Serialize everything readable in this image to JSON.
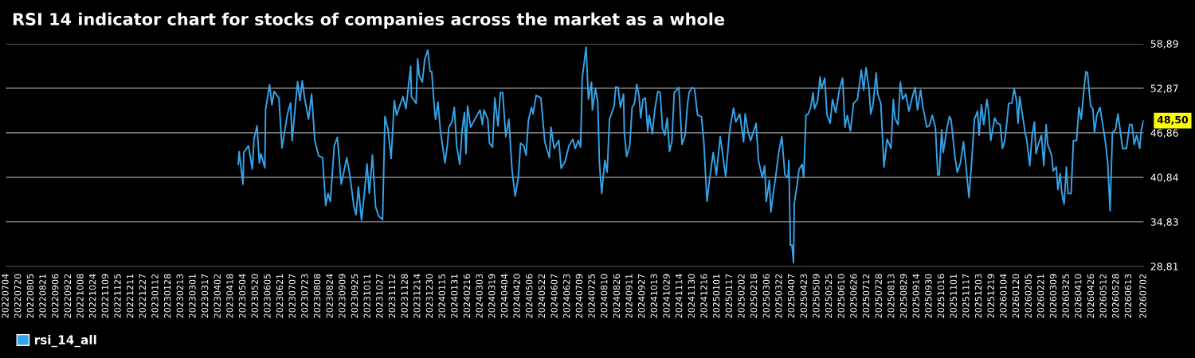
{
  "chart_data": {
    "type": "line",
    "title": "RSI 14 indicator chart for stocks of companies across the market as a whole",
    "x": [
      "2023-04-28",
      "2023-04-29",
      "2023-05-04",
      "2023-05-05",
      "2023-05-11",
      "2023-05-16",
      "2023-05-18",
      "2023-05-22",
      "2023-05-25",
      "2023-05-27",
      "2023-06-01",
      "2023-06-02",
      "2023-06-07",
      "2023-06-10",
      "2023-06-13",
      "2023-06-19",
      "2023-06-23",
      "2023-06-30",
      "2023-07-04",
      "2023-07-06",
      "2023-07-13",
      "2023-07-16",
      "2023-07-19",
      "2023-07-22",
      "2023-07-27",
      "2023-07-31",
      "2023-08-04",
      "2023-08-09",
      "2023-08-14",
      "2023-08-18",
      "2023-08-21",
      "2023-08-24",
      "2023-08-29",
      "2023-09-02",
      "2023-09-07",
      "2023-09-14",
      "2023-09-18",
      "2023-09-23",
      "2023-09-26",
      "2023-09-29",
      "2023-10-03",
      "2023-10-07",
      "2023-10-10",
      "2023-10-13",
      "2023-10-17",
      "2023-10-21",
      "2023-10-25",
      "2023-10-30",
      "2023-11-02",
      "2023-11-06",
      "2023-11-10",
      "2023-11-14",
      "2023-11-17",
      "2023-11-25",
      "2023-11-29",
      "2023-12-05",
      "2023-12-06",
      "2023-12-12",
      "2023-12-14",
      "2023-12-16",
      "2023-12-20",
      "2023-12-23",
      "2023-12-27",
      "2023-12-30",
      "2024-01-01",
      "2024-01-05",
      "2024-01-06",
      "2024-01-09",
      "2024-01-12",
      "2024-01-18",
      "2024-01-21",
      "2024-01-23",
      "2024-01-27",
      "2024-01-30",
      "2024-02-02",
      "2024-02-06",
      "2024-02-09",
      "2024-02-12",
      "2024-02-14",
      "2024-02-16",
      "2024-02-20",
      "2024-02-28",
      "2024-03-03",
      "2024-03-06",
      "2024-03-08",
      "2024-03-13",
      "2024-03-15",
      "2024-03-19",
      "2024-03-22",
      "2024-03-26",
      "2024-03-29",
      "2024-04-01",
      "2024-04-05",
      "2024-04-09",
      "2024-04-13",
      "2024-04-17",
      "2024-04-21",
      "2024-04-24",
      "2024-04-28",
      "2024-05-01",
      "2024-05-04",
      "2024-05-08",
      "2024-05-10",
      "2024-05-14",
      "2024-05-20",
      "2024-05-25",
      "2024-05-31",
      "2024-06-02",
      "2024-06-06",
      "2024-06-12",
      "2024-06-15",
      "2024-06-20",
      "2024-06-25",
      "2024-06-30",
      "2024-07-03",
      "2024-07-07",
      "2024-07-10",
      "2024-07-12",
      "2024-07-17",
      "2024-07-20",
      "2024-07-24",
      "2024-07-25",
      "2024-07-29",
      "2024-08-01",
      "2024-08-03",
      "2024-08-06",
      "2024-08-10",
      "2024-08-13",
      "2024-08-16",
      "2024-08-22",
      "2024-08-24",
      "2024-08-27",
      "2024-08-30",
      "2024-09-03",
      "2024-09-04",
      "2024-09-07",
      "2024-09-11",
      "2024-09-14",
      "2024-09-17",
      "2024-09-20",
      "2024-09-23",
      "2024-09-25",
      "2024-09-28",
      "2024-10-01",
      "2024-10-04",
      "2024-10-06",
      "2024-10-10",
      "2024-10-13",
      "2024-10-17",
      "2024-10-20",
      "2024-10-23",
      "2024-10-26",
      "2024-10-29",
      "2024-11-01",
      "2024-11-04",
      "2024-11-07",
      "2024-11-10",
      "2024-11-13",
      "2024-11-17",
      "2024-11-21",
      "2024-11-24",
      "2024-11-26",
      "2024-11-30",
      "2024-12-03",
      "2024-12-07",
      "2024-12-12",
      "2024-12-15",
      "2024-12-19",
      "2024-12-22",
      "2024-12-27",
      "2024-12-31",
      "2025-01-05",
      "2025-01-08",
      "2025-01-12",
      "2025-01-17",
      "2025-01-22",
      "2025-01-25",
      "2025-01-30",
      "2025-02-04",
      "2025-02-06",
      "2025-02-10",
      "2025-02-13",
      "2025-02-20",
      "2025-02-23",
      "2025-02-28",
      "2025-03-03",
      "2025-03-05",
      "2025-03-09",
      "2025-03-11",
      "2025-03-14",
      "2025-03-17",
      "2025-03-21",
      "2025-03-25",
      "2025-03-29",
      "2025-04-02",
      "2025-04-03",
      "2025-04-05",
      "2025-04-07",
      "2025-04-09",
      "2025-04-10",
      "2025-04-13",
      "2025-04-16",
      "2025-04-20",
      "2025-04-22",
      "2025-04-25",
      "2025-04-28",
      "2025-05-01",
      "2025-05-04",
      "2025-05-06",
      "2025-05-10",
      "2025-05-13",
      "2025-05-15",
      "2025-05-19",
      "2025-05-22",
      "2025-05-26",
      "2025-05-29",
      "2025-06-02",
      "2025-06-07",
      "2025-06-11",
      "2025-06-14",
      "2025-06-17",
      "2025-06-21",
      "2025-06-25",
      "2025-06-30",
      "2025-07-05",
      "2025-07-08",
      "2025-07-11",
      "2025-07-15",
      "2025-07-17",
      "2025-07-20",
      "2025-07-24",
      "2025-07-26",
      "2025-07-30",
      "2025-08-03",
      "2025-08-07",
      "2025-08-10",
      "2025-08-12",
      "2025-08-15",
      "2025-08-17",
      "2025-08-21",
      "2025-08-24",
      "2025-08-27",
      "2025-08-31",
      "2025-09-04",
      "2025-09-08",
      "2025-09-12",
      "2025-09-15",
      "2025-09-19",
      "2025-09-22",
      "2025-09-27",
      "2025-09-30",
      "2025-10-04",
      "2025-10-08",
      "2025-10-11",
      "2025-10-13",
      "2025-10-16",
      "2025-10-18",
      "2025-10-23",
      "2025-10-26",
      "2025-10-28",
      "2025-11-02",
      "2025-11-05",
      "2025-11-09",
      "2025-11-13",
      "2025-11-16",
      "2025-11-20",
      "2025-11-23",
      "2025-11-27",
      "2025-12-01",
      "2025-12-03",
      "2025-12-06",
      "2025-12-09",
      "2025-12-13",
      "2025-12-15",
      "2025-12-18",
      "2025-12-23",
      "2025-12-26",
      "2025-12-30",
      "2026-01-02",
      "2026-01-05",
      "2026-01-08",
      "2026-01-10",
      "2026-01-14",
      "2026-01-17",
      "2026-01-20",
      "2026-01-22",
      "2026-01-24",
      "2026-01-28",
      "2026-01-31",
      "2026-02-02",
      "2026-02-06",
      "2026-02-09",
      "2026-02-12",
      "2026-02-14",
      "2026-02-17",
      "2026-02-21",
      "2026-02-24",
      "2026-02-27",
      "2026-03-01",
      "2026-03-06",
      "2026-03-08",
      "2026-03-12",
      "2026-03-14",
      "2026-03-17",
      "2026-03-19",
      "2026-03-22",
      "2026-03-25",
      "2026-03-27",
      "2026-03-31",
      "2026-04-03",
      "2026-04-07",
      "2026-04-10",
      "2026-04-13",
      "2026-04-16",
      "2026-04-19",
      "2026-04-21",
      "2026-04-25",
      "2026-04-28",
      "2026-04-30",
      "2026-05-03",
      "2026-05-07",
      "2026-05-10",
      "2026-05-14",
      "2026-05-17",
      "2026-05-20",
      "2026-05-23",
      "2026-05-27",
      "2026-05-30",
      "2026-06-01",
      "2026-06-05",
      "2026-06-10",
      "2026-06-14",
      "2026-06-17",
      "2026-06-20",
      "2026-06-23",
      "2026-06-27",
      "2026-06-29",
      "2026-07-02"
    ],
    "series": [
      {
        "name": "rsi_14_all",
        "color": "#35a3e8",
        "values": [
          42.59,
          44.31,
          39.9,
          44.2,
          45.1,
          41.94,
          45.99,
          47.79,
          42.77,
          44.02,
          42.12,
          50.04,
          53.34,
          50.65,
          52.44,
          51.55,
          44.81,
          49.4,
          50.9,
          45.81,
          53.77,
          51.19,
          53.88,
          51.55,
          48.68,
          52.08,
          45.81,
          43.74,
          43.49,
          37.04,
          38.65,
          37.57,
          45.1,
          46.24,
          39.9,
          43.49,
          41.16,
          37.04,
          35.78,
          39.54,
          35.06,
          39.01,
          42.66,
          38.65,
          43.84,
          36.86,
          35.6,
          35.14,
          49.04,
          47.25,
          43.38,
          51.19,
          49.22,
          51.73,
          50.11,
          55.85,
          51.73,
          50.83,
          56.85,
          54.59,
          53.7,
          56.74,
          58.0,
          55.13,
          55.13,
          49.4,
          48.68,
          51.01,
          47.25,
          42.77,
          45.1,
          47.61,
          48.32,
          50.29,
          45.1,
          42.59,
          47.25,
          49.58,
          44.02,
          50.47,
          47.61,
          49.22,
          49.93,
          47.96,
          49.93,
          48.68,
          45.46,
          44.92,
          51.55,
          47.79,
          52.26,
          52.26,
          46.35,
          48.68,
          41.87,
          38.29,
          40.8,
          45.46,
          45.1,
          43.84,
          48.5,
          50.29,
          49.4,
          51.91,
          51.55,
          45.63,
          43.49,
          47.61,
          44.74,
          45.81,
          42.05,
          42.95,
          45.1,
          45.99,
          44.74,
          45.81,
          44.92,
          54.23,
          58.43,
          51.37,
          53.7,
          49.93,
          52.8,
          51.01,
          42.95,
          38.65,
          43.13,
          41.51,
          48.68,
          50.47,
          53.05,
          52.98,
          50.29,
          52.08,
          46.89,
          43.66,
          45.1,
          50.29,
          50.83,
          53.41,
          51.73,
          48.86,
          51.37,
          51.55,
          47.07,
          49.22,
          46.71,
          49.93,
          52.44,
          52.26,
          47.43,
          46.53,
          48.86,
          44.38,
          45.63,
          52.26,
          52.62,
          52.98,
          45.28,
          46.53,
          50.65,
          52.26,
          52.98,
          52.8,
          49.22,
          49.04,
          45.63,
          37.57,
          40.26,
          44.2,
          41.16,
          46.35,
          44.02,
          40.98,
          47.07,
          50.19,
          48.32,
          49.4,
          45.63,
          49.4,
          46.89,
          45.81,
          48.14,
          43.13,
          40.8,
          42.41,
          37.57,
          40.44,
          36.14,
          38.65,
          40.8,
          44.2,
          46.35,
          41.16,
          40.8,
          43.13,
          31.66,
          31.66,
          29.33,
          37.39,
          39.36,
          41.87,
          42.59,
          40.8,
          49.22,
          49.4,
          50.29,
          52.26,
          50.11,
          51.19,
          54.41,
          52.8,
          54.23,
          49.22,
          48.14,
          51.37,
          49.58,
          52.8,
          54.23,
          47.61,
          49.22,
          47.07,
          50.83,
          51.37,
          55.31,
          52.62,
          55.67,
          52.62,
          49.4,
          50.65,
          54.95,
          52.08,
          50.83,
          42.23,
          45.99,
          45.28,
          44.74,
          51.37,
          48.86,
          47.96,
          53.7,
          51.37,
          52.08,
          49.76,
          51.55,
          52.98,
          49.93,
          52.62,
          50.29,
          47.61,
          47.79,
          49.22,
          47.61,
          41.16,
          41.16,
          47.25,
          44.2,
          47.61,
          49.04,
          48.68,
          43.66,
          41.51,
          42.77,
          45.63,
          42.59,
          38.11,
          42.23,
          48.68,
          49.76,
          46.53,
          50.65,
          47.96,
          51.37,
          49.93,
          45.81,
          48.86,
          48.14,
          47.96,
          44.74,
          45.81,
          48.68,
          50.83,
          50.83,
          52.8,
          51.19,
          48.14,
          51.73,
          49.04,
          46.89,
          45.99,
          42.41,
          46.53,
          48.32,
          44.02,
          45.28,
          46.53,
          42.41,
          47.96,
          45.28,
          43.84,
          41.69,
          42.23,
          39.19,
          41.33,
          38.83,
          37.21,
          42.23,
          38.65,
          38.65,
          45.81,
          45.81,
          50.29,
          48.68,
          52.26,
          55.13,
          54.95,
          50.47,
          50.11,
          46.89,
          49.22,
          50.29,
          48.32,
          45.63,
          42.77,
          36.32,
          46.89,
          47.25,
          49.4,
          47.96,
          44.74,
          44.74,
          47.96,
          47.96,
          45.28,
          46.53,
          44.74,
          47.25,
          48.5
        ]
      }
    ],
    "xlim": [
      "2022-07-04",
      "2026-07-02"
    ],
    "xticks": [
      {
        "value": "2022-07-04",
        "label": "20220704"
      },
      {
        "value": "2022-07-20",
        "label": "20220720"
      },
      {
        "value": "2022-08-05",
        "label": "20220805"
      },
      {
        "value": "2022-08-21",
        "label": "20220821"
      },
      {
        "value": "2022-09-06",
        "label": "20220906"
      },
      {
        "value": "2022-09-22",
        "label": "20220922"
      },
      {
        "value": "2022-10-08",
        "label": "20221008"
      },
      {
        "value": "2022-10-24",
        "label": "20221024"
      },
      {
        "value": "2022-11-09",
        "label": "20221109"
      },
      {
        "value": "2022-11-25",
        "label": "20221125"
      },
      {
        "value": "2022-12-11",
        "label": "20221211"
      },
      {
        "value": "2022-12-27",
        "label": "20221227"
      },
      {
        "value": "2023-01-12",
        "label": "20230112"
      },
      {
        "value": "2023-01-28",
        "label": "20230128"
      },
      {
        "value": "2023-02-13",
        "label": "20230213"
      },
      {
        "value": "2023-03-01",
        "label": "20230301"
      },
      {
        "value": "2023-03-17",
        "label": "20230317"
      },
      {
        "value": "2023-04-02",
        "label": "20230402"
      },
      {
        "value": "2023-04-18",
        "label": "20230418"
      },
      {
        "value": "2023-05-04",
        "label": "20230504"
      },
      {
        "value": "2023-05-20",
        "label": "20230520"
      },
      {
        "value": "2023-06-05",
        "label": "20230605"
      },
      {
        "value": "2023-06-21",
        "label": "20230621"
      },
      {
        "value": "2023-07-07",
        "label": "20230707"
      },
      {
        "value": "2023-07-23",
        "label": "20230723"
      },
      {
        "value": "2023-08-08",
        "label": "20230808"
      },
      {
        "value": "2023-08-24",
        "label": "20230824"
      },
      {
        "value": "2023-09-09",
        "label": "20230909"
      },
      {
        "value": "2023-09-25",
        "label": "20230925"
      },
      {
        "value": "2023-10-11",
        "label": "20231011"
      },
      {
        "value": "2023-10-27",
        "label": "20231027"
      },
      {
        "value": "2023-11-12",
        "label": "20231112"
      },
      {
        "value": "2023-11-28",
        "label": "20231128"
      },
      {
        "value": "2023-12-14",
        "label": "20231214"
      },
      {
        "value": "2023-12-30",
        "label": "20231230"
      },
      {
        "value": "2024-01-15",
        "label": "20240115"
      },
      {
        "value": "2024-01-31",
        "label": "20240131"
      },
      {
        "value": "2024-02-16",
        "label": "20240216"
      },
      {
        "value": "2024-03-03",
        "label": "20240303"
      },
      {
        "value": "2024-03-19",
        "label": "20240319"
      },
      {
        "value": "2024-04-04",
        "label": "20240404"
      },
      {
        "value": "2024-04-20",
        "label": "20240420"
      },
      {
        "value": "2024-05-06",
        "label": "20240506"
      },
      {
        "value": "2024-05-22",
        "label": "20240522"
      },
      {
        "value": "2024-06-07",
        "label": "20240607"
      },
      {
        "value": "2024-06-23",
        "label": "20240623"
      },
      {
        "value": "2024-07-09",
        "label": "20240709"
      },
      {
        "value": "2024-07-25",
        "label": "20240725"
      },
      {
        "value": "2024-08-10",
        "label": "20240810"
      },
      {
        "value": "2024-08-26",
        "label": "20240826"
      },
      {
        "value": "2024-09-11",
        "label": "20240911"
      },
      {
        "value": "2024-09-27",
        "label": "20240927"
      },
      {
        "value": "2024-10-13",
        "label": "20241013"
      },
      {
        "value": "2024-10-29",
        "label": "20241029"
      },
      {
        "value": "2024-11-14",
        "label": "20241114"
      },
      {
        "value": "2024-11-30",
        "label": "20241130"
      },
      {
        "value": "2024-12-16",
        "label": "20241216"
      },
      {
        "value": "2025-01-01",
        "label": "20250101"
      },
      {
        "value": "2025-01-17",
        "label": "20250117"
      },
      {
        "value": "2025-02-02",
        "label": "20250202"
      },
      {
        "value": "2025-02-18",
        "label": "20250218"
      },
      {
        "value": "2025-03-06",
        "label": "20250306"
      },
      {
        "value": "2025-03-22",
        "label": "20250322"
      },
      {
        "value": "2025-04-07",
        "label": "20250407"
      },
      {
        "value": "2025-04-23",
        "label": "20250423"
      },
      {
        "value": "2025-05-09",
        "label": "20250509"
      },
      {
        "value": "2025-05-25",
        "label": "20250525"
      },
      {
        "value": "2025-06-10",
        "label": "20250610"
      },
      {
        "value": "2025-06-26",
        "label": "20250626"
      },
      {
        "value": "2025-07-12",
        "label": "20250712"
      },
      {
        "value": "2025-07-28",
        "label": "20250728"
      },
      {
        "value": "2025-08-13",
        "label": "20250813"
      },
      {
        "value": "2025-08-29",
        "label": "20250829"
      },
      {
        "value": "2025-09-14",
        "label": "20250914"
      },
      {
        "value": "2025-09-30",
        "label": "20250930"
      },
      {
        "value": "2025-10-16",
        "label": "20251016"
      },
      {
        "value": "2025-11-01",
        "label": "20251101"
      },
      {
        "value": "2025-11-17",
        "label": "20251117"
      },
      {
        "value": "2025-12-03",
        "label": "20251203"
      },
      {
        "value": "2025-12-19",
        "label": "20251219"
      },
      {
        "value": "2026-01-04",
        "label": "20260104"
      },
      {
        "value": "2026-01-20",
        "label": "20260120"
      },
      {
        "value": "2026-02-05",
        "label": "20260205"
      },
      {
        "value": "2026-02-21",
        "label": "20260221"
      },
      {
        "value": "2026-03-09",
        "label": "20260309"
      },
      {
        "value": "2026-03-25",
        "label": "20260325"
      },
      {
        "value": "2026-04-10",
        "label": "20260410"
      },
      {
        "value": "2026-04-26",
        "label": "20260426"
      },
      {
        "value": "2026-05-12",
        "label": "20260512"
      },
      {
        "value": "2026-05-28",
        "label": "20260528"
      },
      {
        "value": "2026-06-13",
        "label": "20260613"
      },
      {
        "value": "2026-07-02",
        "label": "20260702"
      }
    ],
    "ylim": [
      28.81,
      58.89
    ],
    "yticks": [
      {
        "value": 28.81,
        "label": "28,81"
      },
      {
        "value": 34.83,
        "label": "34,83"
      },
      {
        "value": 40.84,
        "label": "40,84"
      },
      {
        "value": 46.86,
        "label": "46,86"
      },
      {
        "value": 52.87,
        "label": "52,87"
      },
      {
        "value": 58.89,
        "label": "58,89"
      }
    ],
    "annotations": [
      {
        "text": "48,50",
        "x": "2026-07-02",
        "y": 48.5
      }
    ],
    "grid": "y",
    "legend": "bottom",
    "marker": "none",
    "line_style": "solid"
  }
}
